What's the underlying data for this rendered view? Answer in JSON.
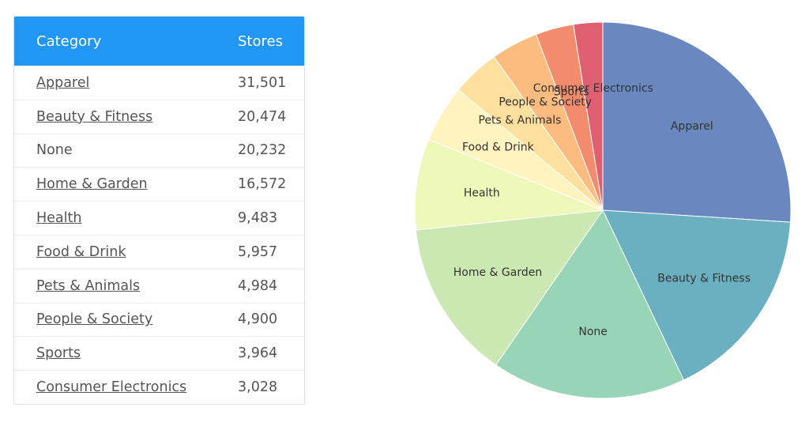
{
  "table": {
    "columns": [
      "Category",
      "Stores"
    ],
    "rows": [
      {
        "category": "Apparel",
        "stores": "31,501",
        "link": true
      },
      {
        "category": "Beauty & Fitness",
        "stores": "20,474",
        "link": true
      },
      {
        "category": "None",
        "stores": "20,232",
        "link": false
      },
      {
        "category": "Home & Garden",
        "stores": "16,572",
        "link": true
      },
      {
        "category": "Health",
        "stores": "9,483",
        "link": true
      },
      {
        "category": "Food & Drink",
        "stores": "5,957",
        "link": true
      },
      {
        "category": "Pets & Animals",
        "stores": "4,984",
        "link": true
      },
      {
        "category": "People & Society",
        "stores": "4,900",
        "link": true
      },
      {
        "category": "Sports",
        "stores": "3,964",
        "link": true
      },
      {
        "category": "Consumer Electronics",
        "stores": "3,028",
        "link": true
      }
    ]
  },
  "chart_data": {
    "type": "pie",
    "categories": [
      "Apparel",
      "Beauty & Fitness",
      "None",
      "Home & Garden",
      "Health",
      "Food & Drink",
      "Pets & Animals",
      "People & Society",
      "Sports",
      "Consumer Electronics"
    ],
    "values": [
      31501,
      20474,
      20232,
      16572,
      9483,
      5957,
      4984,
      4900,
      3964,
      3028
    ],
    "colors": [
      "#6a88bf",
      "#6ab0c0",
      "#98d5b6",
      "#cbe8b2",
      "#eef8b8",
      "#fff3bf",
      "#fee09e",
      "#fdbc7f",
      "#f28c6c",
      "#df5e6f"
    ]
  }
}
